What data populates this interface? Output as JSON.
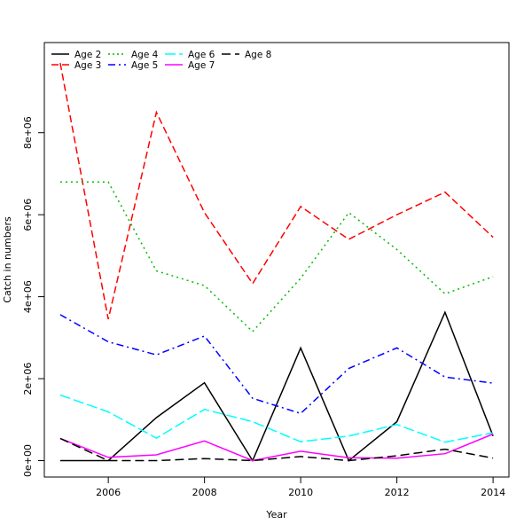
{
  "chart_data": {
    "type": "line",
    "title": "",
    "xlabel": "Year",
    "ylabel": "Catch in numbers",
    "xlim": [
      2004.67,
      2014.33
    ],
    "ylim": [
      -400000,
      10200000
    ],
    "x": [
      2005,
      2006,
      2007,
      2008,
      2009,
      2010,
      2011,
      2012,
      2013,
      2014
    ],
    "x_ticks": [
      {
        "value": 2006,
        "label": "2006"
      },
      {
        "value": 2008,
        "label": "2008"
      },
      {
        "value": 2010,
        "label": "2010"
      },
      {
        "value": 2012,
        "label": "2012"
      },
      {
        "value": 2014,
        "label": "2014"
      }
    ],
    "y_ticks": [
      {
        "value": 0,
        "label": "0e+00"
      },
      {
        "value": 2000000,
        "label": "2e+06"
      },
      {
        "value": 4000000,
        "label": "4e+06"
      },
      {
        "value": 6000000,
        "label": "6e+06"
      },
      {
        "value": 8000000,
        "label": "8e+06"
      }
    ],
    "grid": false,
    "legend_position": "top-left",
    "series": [
      {
        "name": "Age 2",
        "color": "#000000",
        "dash": "",
        "values": [
          0,
          0,
          1050000,
          1900000,
          0,
          2750000,
          0,
          950000,
          3620000,
          600000
        ]
      },
      {
        "name": "Age 3",
        "color": "#ff0000",
        "dash": "8,4",
        "values": [
          9700000,
          3450000,
          8500000,
          6050000,
          4320000,
          6200000,
          5400000,
          6000000,
          6550000,
          5450000
        ]
      },
      {
        "name": "Age 4",
        "color": "#00bb00",
        "dash": "2,4",
        "values": [
          6800000,
          6800000,
          4630000,
          4270000,
          3150000,
          4450000,
          6050000,
          5150000,
          4070000,
          4490000
        ]
      },
      {
        "name": "Age 5",
        "color": "#0000ff",
        "dash": "8,4,2,4",
        "values": [
          3560000,
          2900000,
          2580000,
          3040000,
          1520000,
          1150000,
          2250000,
          2750000,
          2040000,
          1890000
        ]
      },
      {
        "name": "Age 6",
        "color": "#00ffff",
        "dash": "12,4",
        "values": [
          1600000,
          1190000,
          550000,
          1250000,
          950000,
          460000,
          600000,
          880000,
          450000,
          680000
        ]
      },
      {
        "name": "Age 7",
        "color": "#ff00ff",
        "dash": "",
        "values": [
          540000,
          80000,
          140000,
          480000,
          0,
          230000,
          70000,
          60000,
          170000,
          650000
        ]
      },
      {
        "name": "Age 8",
        "color": "#000000",
        "dash": "10,5",
        "values": [
          540000,
          0,
          0,
          50000,
          0,
          100000,
          0,
          120000,
          280000,
          60000
        ]
      }
    ]
  }
}
